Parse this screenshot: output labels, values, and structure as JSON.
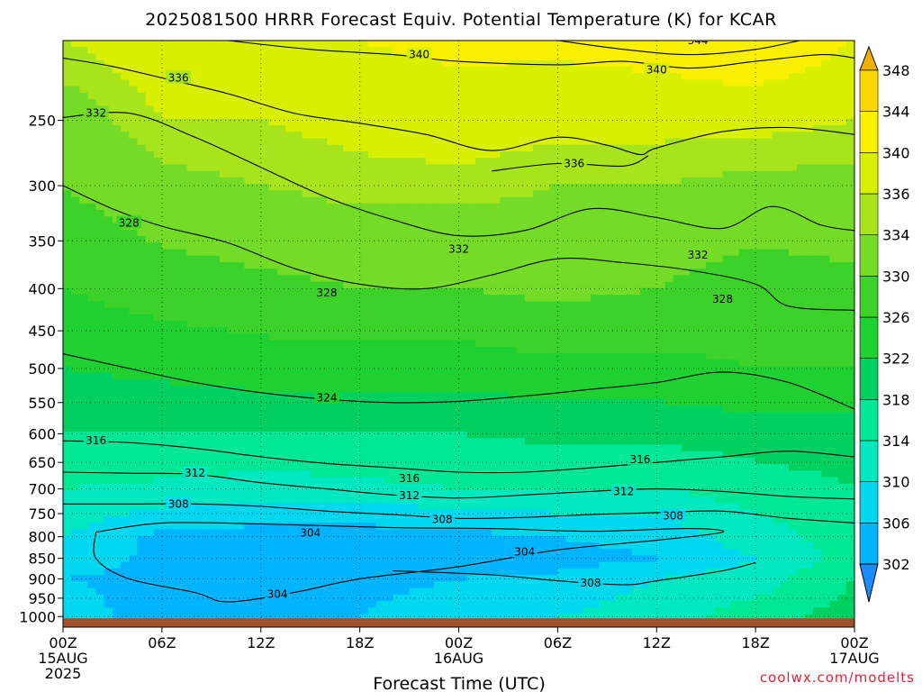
{
  "title": "2025081500 HRRR Forecast Equiv. Potential Temperature (K) for KCAR",
  "credit": "coolwx.com/modelts",
  "chart_data": {
    "type": "heatmap",
    "title": "2025081500 HRRR Forecast Equiv. Potential Temperature (K) for KCAR",
    "xlabel": "Forecast Time (UTC)",
    "ylabel": "",
    "x_hours": [
      0,
      6,
      12,
      18,
      24,
      30,
      36,
      42,
      48
    ],
    "xlim": [
      0,
      48
    ],
    "x_ticks": [
      {
        "hour": 0,
        "line1": "00Z",
        "line2": "15AUG",
        "line3": "2025"
      },
      {
        "hour": 6,
        "line1": "06Z",
        "line2": "",
        "line3": ""
      },
      {
        "hour": 12,
        "line1": "12Z",
        "line2": "",
        "line3": ""
      },
      {
        "hour": 18,
        "line1": "18Z",
        "line2": "",
        "line3": ""
      },
      {
        "hour": 24,
        "line1": "00Z",
        "line2": "16AUG",
        "line3": ""
      },
      {
        "hour": 30,
        "line1": "06Z",
        "line2": "",
        "line3": ""
      },
      {
        "hour": 36,
        "line1": "12Z",
        "line2": "",
        "line3": ""
      },
      {
        "hour": 42,
        "line1": "18Z",
        "line2": "",
        "line3": ""
      },
      {
        "hour": 48,
        "line1": "00Z",
        "line2": "17AUG",
        "line3": ""
      }
    ],
    "y_scale": "log",
    "ylim": [
      1030,
      200
    ],
    "y_ticks": [
      "250",
      "300",
      "350",
      "400",
      "450",
      "500",
      "550",
      "600",
      "650",
      "700",
      "750",
      "800",
      "850",
      "900",
      "950",
      "1000"
    ],
    "grid": true,
    "surface_color": "#a0522d",
    "colorbar": {
      "levels": [
        "302",
        "306",
        "310",
        "314",
        "318",
        "322",
        "326",
        "330",
        "334",
        "336",
        "340",
        "344",
        "348"
      ],
      "colors": [
        "#1a8cff",
        "#00b4ff",
        "#00d8f0",
        "#00e8c0",
        "#00e896",
        "#00d060",
        "#1ed030",
        "#3cd22a",
        "#74dc26",
        "#a8e41c",
        "#d8f000",
        "#f8f000",
        "#f8d800",
        "#f0b000"
      ]
    },
    "field_profiles": [
      {
        "hour": 0,
        "p": [
          1000,
          900,
          800,
          750,
          700,
          650,
          600,
          500,
          400,
          300,
          250,
          200
        ],
        "theta_e": [
          308,
          306,
          310,
          312,
          314,
          316,
          318,
          322,
          326,
          330,
          332,
          336
        ]
      },
      {
        "hour": 6,
        "p": [
          1000,
          900,
          800,
          750,
          700,
          650,
          600,
          500,
          400,
          300,
          250,
          200
        ],
        "theta_e": [
          304,
          305,
          305,
          309,
          313,
          316,
          318,
          323,
          328,
          333,
          336,
          338
        ]
      },
      {
        "hour": 12,
        "p": [
          1000,
          900,
          850,
          800,
          750,
          700,
          600,
          500,
          400,
          300,
          250,
          200
        ],
        "theta_e": [
          304,
          304,
          302,
          304,
          308,
          312,
          318,
          324,
          329,
          334,
          336,
          339
        ]
      },
      {
        "hour": 18,
        "p": [
          1000,
          900,
          850,
          800,
          750,
          700,
          600,
          500,
          400,
          300,
          250,
          200
        ],
        "theta_e": [
          306,
          305,
          302,
          304,
          308,
          313,
          318,
          324,
          330,
          335,
          337,
          340
        ]
      },
      {
        "hour": 24,
        "p": [
          1000,
          900,
          850,
          800,
          750,
          700,
          600,
          500,
          400,
          300,
          250,
          200
        ],
        "theta_e": [
          308,
          306,
          303,
          305,
          309,
          314,
          318,
          324,
          330,
          335,
          338,
          341
        ]
      },
      {
        "hour": 30,
        "p": [
          1000,
          900,
          850,
          800,
          750,
          700,
          600,
          500,
          400,
          300,
          250,
          200
        ],
        "theta_e": [
          310,
          307,
          304,
          306,
          310,
          314,
          319,
          325,
          331,
          334,
          337,
          341
        ]
      },
      {
        "hour": 36,
        "p": [
          1000,
          900,
          850,
          800,
          750,
          700,
          600,
          500,
          400,
          300,
          250,
          200
        ],
        "theta_e": [
          312,
          310,
          306,
          308,
          310,
          314,
          319,
          325,
          330,
          334,
          337,
          342
        ]
      },
      {
        "hour": 42,
        "p": [
          1000,
          900,
          850,
          800,
          750,
          700,
          600,
          500,
          400,
          300,
          250,
          200
        ],
        "theta_e": [
          316,
          312,
          310,
          312,
          314,
          316,
          320,
          326,
          328,
          333,
          337,
          344
        ]
      },
      {
        "hour": 48,
        "p": [
          1000,
          900,
          850,
          800,
          750,
          700,
          600,
          500,
          400,
          300,
          250,
          200
        ],
        "theta_e": [
          320,
          318,
          316,
          316,
          316,
          318,
          320,
          326,
          329,
          333,
          336,
          340
        ]
      }
    ],
    "contours": [
      {
        "value": 344,
        "label": "344",
        "label_at": [
          38.5,
          200
        ],
        "points": [
          [
            30,
            200
          ],
          [
            34,
            205
          ],
          [
            38,
            208
          ],
          [
            42,
            205
          ],
          [
            46,
            198
          ],
          [
            48,
            200
          ]
        ]
      },
      {
        "value": 340,
        "label": "340",
        "label_at": [
          21.6,
          208
        ],
        "points": [
          [
            10,
            200
          ],
          [
            15,
            205
          ],
          [
            20,
            208
          ],
          [
            24,
            212
          ],
          [
            30,
            214
          ],
          [
            34,
            212
          ],
          [
            38,
            216
          ],
          [
            42,
            212
          ],
          [
            46,
            208
          ],
          [
            48,
            210
          ]
        ]
      },
      {
        "value": 340,
        "label": "340",
        "label_at": [
          36,
          217
        ],
        "points": []
      },
      {
        "value": 336,
        "label": "336",
        "label_at": [
          7,
          222
        ],
        "points": [
          [
            0,
            210
          ],
          [
            3,
            215
          ],
          [
            6,
            222
          ],
          [
            10,
            232
          ],
          [
            14,
            245
          ],
          [
            18,
            252
          ],
          [
            22,
            260
          ],
          [
            26,
            272
          ],
          [
            30,
            262
          ],
          [
            33,
            268
          ],
          [
            35,
            275
          ],
          [
            36,
            270
          ],
          [
            40,
            258
          ],
          [
            44,
            255
          ],
          [
            48,
            260
          ]
        ]
      },
      {
        "value": 336,
        "label": "336",
        "label_at": [
          31,
          282
        ],
        "points": [
          [
            26,
            288
          ],
          [
            30,
            282
          ],
          [
            34,
            284
          ],
          [
            35.5,
            276
          ]
        ]
      },
      {
        "value": 332,
        "label": "332",
        "label_at": [
          2,
          245
        ],
        "points": [
          [
            0,
            248
          ],
          [
            4,
            245
          ],
          [
            8,
            262
          ],
          [
            12,
            285
          ],
          [
            16,
            310
          ],
          [
            20,
            330
          ],
          [
            24,
            345
          ],
          [
            28,
            340
          ],
          [
            32,
            320
          ],
          [
            36,
            328
          ],
          [
            40,
            338
          ],
          [
            43,
            318
          ],
          [
            46,
            335
          ],
          [
            48,
            340
          ]
        ]
      },
      {
        "value": 332,
        "label": "332",
        "label_at": [
          24,
          358
        ],
        "points": []
      },
      {
        "value": 332,
        "label": "332",
        "label_at": [
          38.5,
          364
        ],
        "points": []
      },
      {
        "value": 328,
        "label": "328",
        "label_at": [
          4,
          333
        ],
        "points": [
          [
            0,
            300
          ],
          [
            3,
            320
          ],
          [
            6,
            336
          ],
          [
            10,
            352
          ],
          [
            14,
            378
          ],
          [
            18,
            395
          ],
          [
            22,
            400
          ],
          [
            26,
            385
          ],
          [
            30,
            368
          ],
          [
            34,
            372
          ],
          [
            38,
            380
          ],
          [
            42,
            395
          ],
          [
            44,
            420
          ],
          [
            48,
            425
          ]
        ]
      },
      {
        "value": 328,
        "label": "328",
        "label_at": [
          16,
          405
        ],
        "points": []
      },
      {
        "value": 328,
        "label": "328",
        "label_at": [
          40,
          412
        ],
        "points": []
      },
      {
        "value": 324,
        "label": "324",
        "label_at": [
          16,
          543
        ],
        "points": [
          [
            0,
            480
          ],
          [
            4,
            500
          ],
          [
            8,
            520
          ],
          [
            12,
            535
          ],
          [
            16,
            545
          ],
          [
            20,
            550
          ],
          [
            24,
            548
          ],
          [
            28,
            540
          ],
          [
            32,
            530
          ],
          [
            36,
            520
          ],
          [
            40,
            505
          ],
          [
            44,
            520
          ],
          [
            48,
            560
          ]
        ]
      },
      {
        "value": 316,
        "label": "316",
        "label_at": [
          2,
          612
        ],
        "points": [
          [
            0,
            612
          ],
          [
            4,
            615
          ],
          [
            8,
            625
          ],
          [
            12,
            640
          ],
          [
            16,
            652
          ],
          [
            20,
            660
          ],
          [
            24,
            668
          ],
          [
            28,
            668
          ],
          [
            32,
            660
          ],
          [
            36,
            650
          ],
          [
            40,
            640
          ],
          [
            44,
            630
          ],
          [
            48,
            640
          ]
        ]
      },
      {
        "value": 316,
        "label": "316",
        "label_at": [
          21,
          680
        ],
        "points": []
      },
      {
        "value": 316,
        "label": "316",
        "label_at": [
          35,
          645
        ],
        "points": []
      },
      {
        "value": 312,
        "label": "312",
        "label_at": [
          8,
          670
        ],
        "points": [
          [
            0,
            668
          ],
          [
            4,
            670
          ],
          [
            8,
            672
          ],
          [
            12,
            688
          ],
          [
            16,
            700
          ],
          [
            20,
            712
          ],
          [
            24,
            718
          ],
          [
            28,
            712
          ],
          [
            32,
            705
          ],
          [
            36,
            700
          ],
          [
            40,
            705
          ],
          [
            44,
            715
          ],
          [
            48,
            720
          ]
        ]
      },
      {
        "value": 312,
        "label": "312",
        "label_at": [
          21,
          713
        ],
        "points": []
      },
      {
        "value": 312,
        "label": "312",
        "label_at": [
          34,
          705
        ],
        "points": []
      },
      {
        "value": 308,
        "label": "308",
        "label_at": [
          7,
          730
        ],
        "points": [
          [
            0,
            730
          ],
          [
            4,
            730
          ],
          [
            8,
            730
          ],
          [
            12,
            735
          ],
          [
            16,
            745
          ],
          [
            20,
            752
          ],
          [
            24,
            760
          ],
          [
            28,
            758
          ],
          [
            32,
            752
          ],
          [
            36,
            748
          ],
          [
            40,
            745
          ],
          [
            44,
            760
          ],
          [
            48,
            770
          ]
        ]
      },
      {
        "value": 308,
        "label": "308",
        "label_at": [
          23,
          762
        ],
        "points": []
      },
      {
        "value": 308,
        "label": "308",
        "label_at": [
          37,
          755
        ],
        "points": []
      },
      {
        "value": 304,
        "label": "304",
        "label_at": [
          15,
          792
        ],
        "points": [
          [
            2,
            790
          ],
          [
            6,
            770
          ],
          [
            12,
            772
          ],
          [
            20,
            780
          ],
          [
            26,
            782
          ],
          [
            32,
            788
          ],
          [
            38,
            782
          ],
          [
            40,
            790
          ],
          [
            36,
            808
          ],
          [
            30,
            830
          ],
          [
            24,
            870
          ],
          [
            18,
            900
          ],
          [
            14,
            935
          ],
          [
            10,
            960
          ],
          [
            8,
            935
          ],
          [
            4,
            900
          ],
          [
            2,
            850
          ],
          [
            2,
            790
          ]
        ]
      },
      {
        "value": 304,
        "label": "304",
        "label_at": [
          28,
          835
        ],
        "points": []
      },
      {
        "value": 304,
        "label": "304",
        "label_at": [
          13,
          940
        ],
        "points": []
      },
      {
        "value": 308,
        "label": "308",
        "label_at": [
          32,
          910
        ],
        "points": [
          [
            20,
            880
          ],
          [
            26,
            890
          ],
          [
            30,
            905
          ],
          [
            34,
            915
          ],
          [
            36,
            905
          ],
          [
            40,
            880
          ],
          [
            42,
            860
          ]
        ]
      }
    ]
  }
}
